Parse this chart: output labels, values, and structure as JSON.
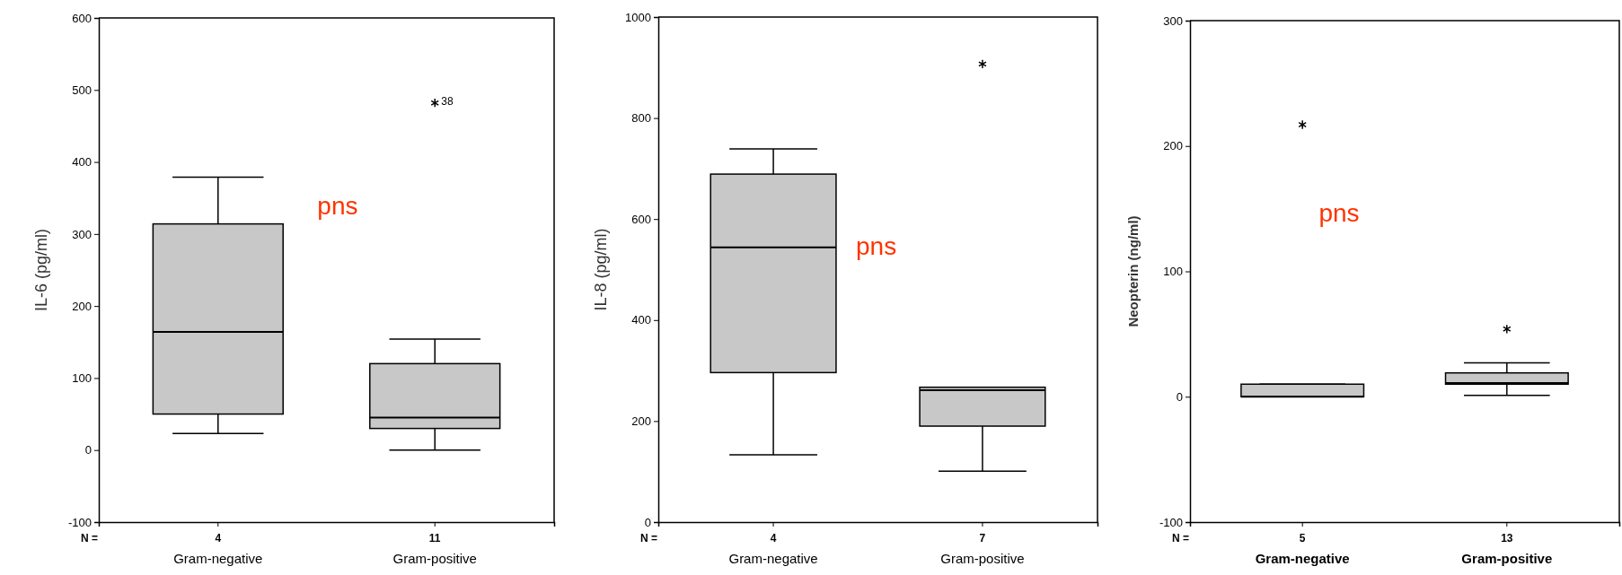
{
  "chart_data": [
    {
      "type": "box",
      "ylabel": "IL-6 (pg/ml)",
      "categories": [
        "Gram-negative",
        "Gram-positive"
      ],
      "ylim": [
        -100,
        600
      ],
      "yticks": [
        -100,
        0,
        100,
        200,
        300,
        400,
        500,
        600
      ],
      "color": "#c8c8c8",
      "boxes": [
        {
          "low": 23,
          "q1": 50,
          "median": 164,
          "q3": 314,
          "high": 379
        },
        {
          "low": 0,
          "q1": 30,
          "median": 45,
          "q3": 120,
          "high": 154,
          "outliers": [
            482
          ]
        }
      ],
      "annotations": [
        "N =",
        "4",
        "11",
        "38",
        "pns"
      ]
    },
    {
      "type": "box",
      "ylabel": "IL-8 (pg/ml)",
      "categories": [
        "Gram-negative",
        "Gram-positive"
      ],
      "ylim": [
        0,
        1000
      ],
      "yticks": [
        0,
        200,
        400,
        600,
        800,
        1000
      ],
      "color": "#c8c8c8",
      "boxes": [
        {
          "low": 133,
          "q1": 296,
          "median": 544,
          "q3": 689,
          "high": 739
        },
        {
          "low": 101,
          "q1": 190,
          "median": 261,
          "q3": 267,
          "high": 267,
          "outliers": [
            907
          ]
        }
      ],
      "annotations": [
        "N =",
        "4",
        "7",
        "pns"
      ]
    },
    {
      "type": "box",
      "ylabel": "Neopterin (ng/ml)",
      "categories": [
        "Gram-negative",
        "Gram-positive"
      ],
      "ylim": [
        -100,
        300
      ],
      "yticks": [
        -100,
        0,
        100,
        200,
        300
      ],
      "color": "#c8c8c8",
      "boxes": [
        {
          "low": 0,
          "q1": 0,
          "median": 0,
          "q3": 10,
          "high": 10,
          "outliers": [
            217
          ]
        },
        {
          "low": 1,
          "q1": 10,
          "median": 11,
          "q3": 19,
          "high": 27,
          "outliers": [
            54
          ]
        }
      ],
      "annotations": [
        "N =",
        "5",
        "13",
        "pns"
      ]
    }
  ]
}
